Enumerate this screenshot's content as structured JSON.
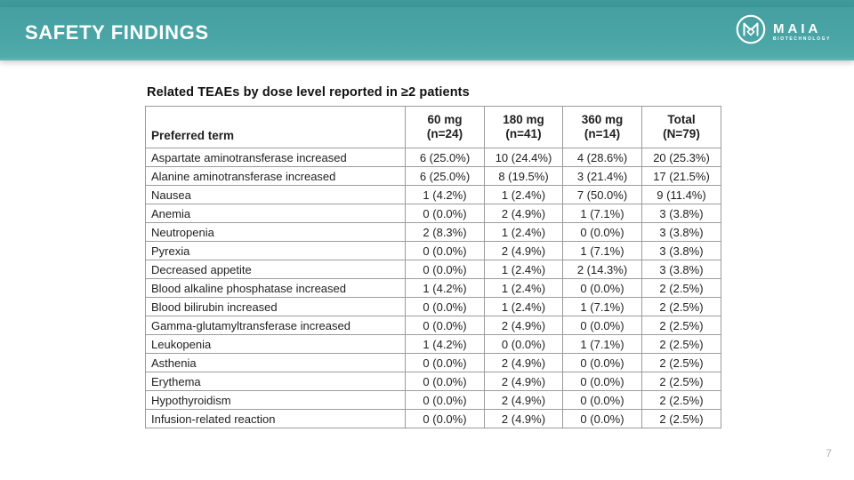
{
  "slide": {
    "header_title": "SAFETY FINDINGS",
    "page_number": "7",
    "logo": {
      "name": "MAIA",
      "subtitle": "BIOTECHNOLOGY"
    }
  },
  "table": {
    "title": "Related TEAEs by dose level reported in ≥2 patients",
    "header": {
      "term_label": "Preferred term",
      "dose_columns": [
        {
          "dose": "60 mg",
          "n": "(n=24)"
        },
        {
          "dose": "180 mg",
          "n": "(n=41)"
        },
        {
          "dose": "360 mg",
          "n": "(n=14)"
        },
        {
          "dose": "Total",
          "n": "(N=79)"
        }
      ]
    },
    "rows": [
      {
        "term": "Aspartate aminotransferase increased",
        "values": [
          "6 (25.0%)",
          "10 (24.4%)",
          "4 (28.6%)",
          "20 (25.3%)"
        ]
      },
      {
        "term": "Alanine aminotransferase increased",
        "values": [
          "6 (25.0%)",
          "8 (19.5%)",
          "3 (21.4%)",
          "17 (21.5%)"
        ]
      },
      {
        "term": "Nausea",
        "values": [
          "1 (4.2%)",
          "1 (2.4%)",
          "7 (50.0%)",
          "9 (11.4%)"
        ]
      },
      {
        "term": "Anemia",
        "values": [
          "0 (0.0%)",
          "2 (4.9%)",
          "1 (7.1%)",
          "3 (3.8%)"
        ]
      },
      {
        "term": "Neutropenia",
        "values": [
          "2 (8.3%)",
          "1 (2.4%)",
          "0 (0.0%)",
          "3 (3.8%)"
        ]
      },
      {
        "term": "Pyrexia",
        "values": [
          "0 (0.0%)",
          "2 (4.9%)",
          "1 (7.1%)",
          "3 (3.8%)"
        ]
      },
      {
        "term": "Decreased appetite",
        "values": [
          "0 (0.0%)",
          "1 (2.4%)",
          "2 (14.3%)",
          "3 (3.8%)"
        ]
      },
      {
        "term": "Blood alkaline phosphatase increased",
        "values": [
          "1 (4.2%)",
          "1 (2.4%)",
          "0 (0.0%)",
          "2 (2.5%)"
        ]
      },
      {
        "term": "Blood bilirubin increased",
        "values": [
          "0 (0.0%)",
          "1 (2.4%)",
          "1 (7.1%)",
          "2 (2.5%)"
        ]
      },
      {
        "term": "Gamma-glutamyltransferase increased",
        "values": [
          "0 (0.0%)",
          "2 (4.9%)",
          "0 (0.0%)",
          "2 (2.5%)"
        ]
      },
      {
        "term": "Leukopenia",
        "values": [
          "1 (4.2%)",
          "0 (0.0%)",
          "1 (7.1%)",
          "2 (2.5%)"
        ]
      },
      {
        "term": "Asthenia",
        "values": [
          "0 (0.0%)",
          "2 (4.9%)",
          "0 (0.0%)",
          "2 (2.5%)"
        ]
      },
      {
        "term": "Erythema",
        "values": [
          "0 (0.0%)",
          "2 (4.9%)",
          "0 (0.0%)",
          "2 (2.5%)"
        ]
      },
      {
        "term": "Hypothyroidism",
        "values": [
          "0 (0.0%)",
          "2 (4.9%)",
          "0 (0.0%)",
          "2 (2.5%)"
        ]
      },
      {
        "term": "Infusion-related reaction",
        "values": [
          "0 (0.0%)",
          "2 (4.9%)",
          "0 (0.0%)",
          "2 (2.5%)"
        ]
      }
    ]
  },
  "colors": {
    "banner_teal": "#4ba6a7",
    "top_strip_teal": "#3f989a",
    "table_border": "#9b9b9b",
    "text": "#1f1f1f",
    "page_number": "#b2b2b2"
  }
}
